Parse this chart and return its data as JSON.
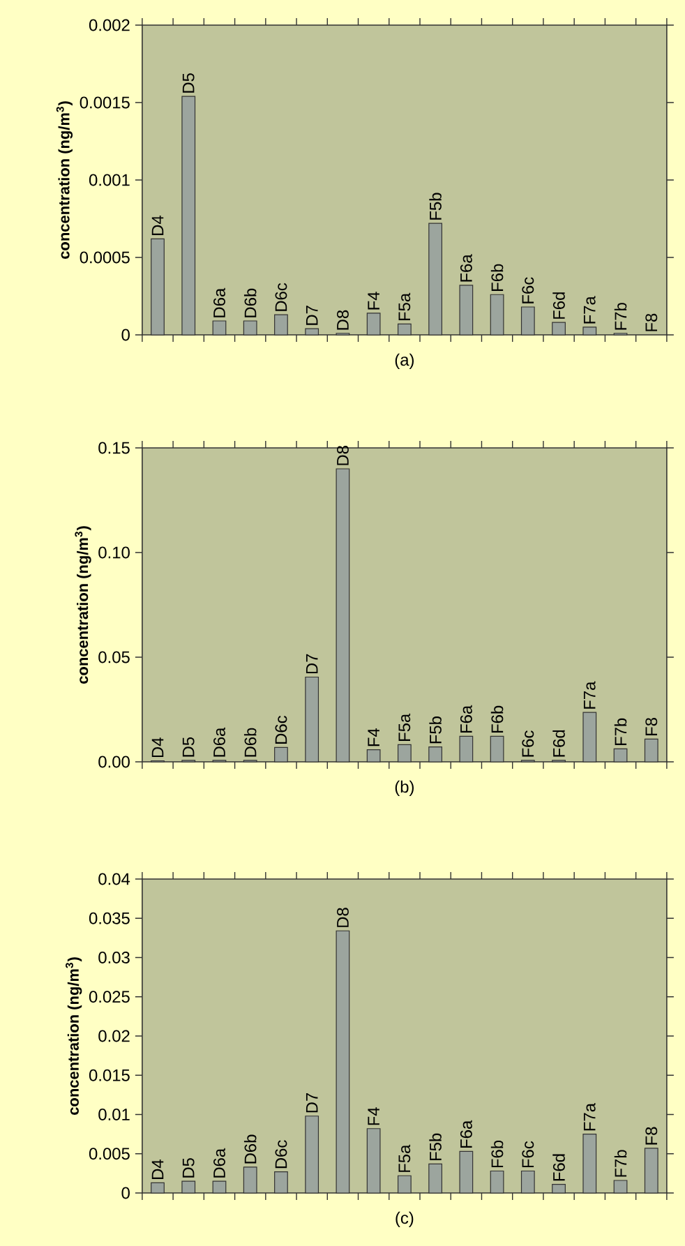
{
  "chart_data": [
    {
      "type": "bar",
      "title": "(a)",
      "ylabel": "concentration (ng/m$^{3}$)",
      "color": "#9ca59e",
      "categories": [
        "D4",
        "D5",
        "D6a",
        "D6b",
        "D6c",
        "D7",
        "D8",
        "F4",
        "F5a",
        "F5b",
        "F6a",
        "F6b",
        "F6c",
        "F6d",
        "F7a",
        "F7b",
        "F8"
      ],
      "values": [
        0.00062,
        0.00154,
        9e-05,
        9e-05,
        0.00013,
        4e-05,
        1e-05,
        0.00014,
        7e-05,
        0.00072,
        0.00032,
        0.00026,
        0.00018,
        8e-05,
        5e-05,
        1e-05,
        null
      ],
      "ylim": [
        0,
        0.002
      ],
      "yticks": [
        0,
        0.0005,
        0.001,
        0.0015,
        0.002
      ]
    },
    {
      "type": "bar",
      "title": "(b)",
      "ylabel": "concentration (ng/m$^{3}$)",
      "color": "#9ca59e",
      "categories": [
        "D4",
        "D5",
        "D6a",
        "D6b",
        "D6c",
        "D7",
        "D8",
        "F4",
        "F5a",
        "F5b",
        "F6a",
        "F6b",
        "F6c",
        "F6d",
        "F7a",
        "F7b",
        "F8"
      ],
      "values": [
        0.0005,
        0.0007,
        0.0007,
        0.0007,
        0.0069,
        0.0405,
        0.14,
        0.0058,
        0.0082,
        0.0071,
        0.0122,
        0.0122,
        0.0007,
        0.0007,
        0.0236,
        0.0062,
        0.0109
      ],
      "ylim": [
        0,
        0.15
      ],
      "yticks": [
        {
          "value": 0,
          "label": "0.00"
        },
        {
          "value": 0.05,
          "label": "0.05"
        },
        {
          "value": 0.1,
          "label": "0.10"
        },
        {
          "value": 0.15,
          "label": "0.15"
        }
      ]
    },
    {
      "type": "bar",
      "title": "(c)",
      "ylabel": "concentration (ng/m$^{3}$)",
      "color": "#9ca59e",
      "categories": [
        "D4",
        "D5",
        "D6a",
        "D6b",
        "D6c",
        "D7",
        "D8",
        "F4",
        "F5a",
        "F5b",
        "F6a",
        "F6b",
        "F6c",
        "F6d",
        "F7a",
        "F7b",
        "F8"
      ],
      "values": [
        0.0013,
        0.0015,
        0.0015,
        0.0033,
        0.0027,
        0.0098,
        0.0334,
        0.0082,
        0.0022,
        0.0037,
        0.0053,
        0.0028,
        0.0028,
        0.0011,
        0.0075,
        0.0016,
        0.0057
      ],
      "ylim": [
        0,
        0.04
      ],
      "yticks": [
        0,
        0.005,
        0.01,
        0.015,
        0.02,
        0.025,
        0.03,
        0.035,
        0.04
      ]
    }
  ]
}
